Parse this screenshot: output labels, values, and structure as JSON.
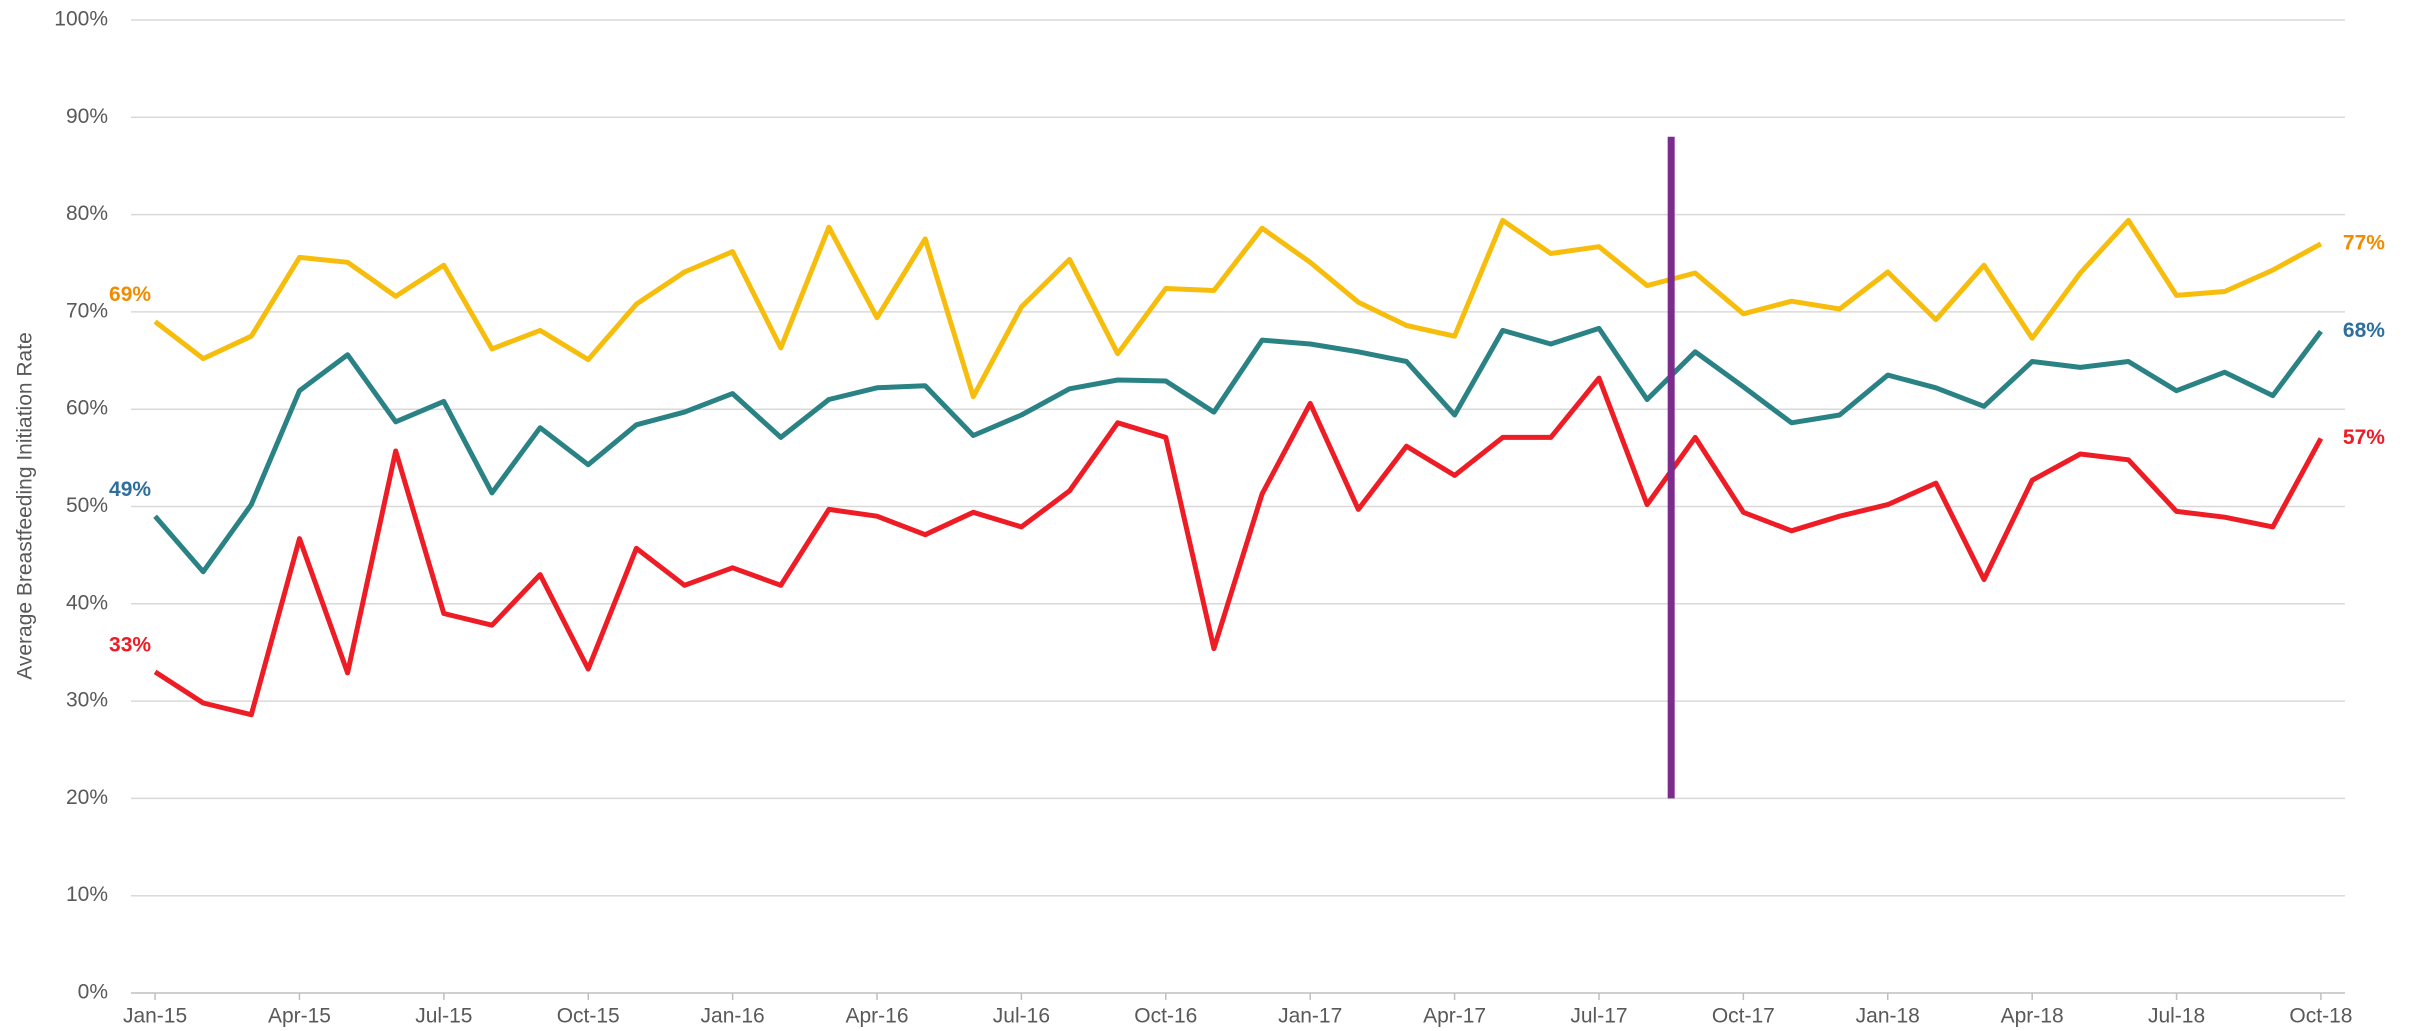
{
  "chart_data": {
    "type": "line",
    "ylabel": "Average Breastfeeding Initiation Rate",
    "categories": [
      "Jan-15",
      null,
      null,
      "Apr-15",
      null,
      null,
      "Jul-15",
      null,
      null,
      "Oct-15",
      null,
      null,
      "Jan-16",
      null,
      null,
      "Apr-16",
      null,
      null,
      "Jul-16",
      null,
      null,
      "Oct-16",
      null,
      null,
      "Jan-17",
      null,
      null,
      "Apr-17",
      null,
      null,
      "Jul-17",
      null,
      null,
      "Oct-17",
      null,
      null,
      "Jan-18",
      null,
      null,
      "Apr-18",
      null,
      null,
      "Jul-18",
      null,
      null,
      "Oct-18"
    ],
    "series": [
      {
        "color": "#f7bd0c",
        "label_color": "#f08c00",
        "values": [
          69,
          65.2,
          67.5,
          75.6,
          75.1,
          71.6,
          74.8,
          66.2,
          68.1,
          65.1,
          70.8,
          74.1,
          76.2,
          66.3,
          78.7,
          69.4,
          77.5,
          61.3,
          70.5,
          75.4,
          65.7,
          72.4,
          72.2,
          78.6,
          75.1,
          71,
          68.6,
          67.5,
          79.4,
          76,
          76.7,
          72.7,
          74,
          69.8,
          71.1,
          70.3,
          74.1,
          69.2,
          74.8,
          67.3,
          74,
          79.4,
          71.7,
          72.1,
          74.3,
          77
        ],
        "value_labels": [
          "69%",
          null,
          null,
          null,
          null,
          null,
          null,
          null,
          null,
          null,
          null,
          null,
          null,
          null,
          null,
          null,
          null,
          null,
          null,
          null,
          null,
          null,
          null,
          null,
          null,
          null,
          null,
          null,
          null,
          null,
          null,
          null,
          null,
          null,
          null,
          null,
          null,
          null,
          null,
          null,
          null,
          null,
          null,
          null,
          null,
          "77%"
        ]
      },
      {
        "color": "#2a8285",
        "label_color": "#2e6f9e",
        "values": [
          49,
          43.3,
          50.2,
          61.9,
          65.6,
          58.7,
          60.8,
          51.4,
          58.1,
          54.3,
          58.4,
          59.7,
          61.6,
          57.1,
          61,
          62.2,
          62.4,
          57.3,
          59.4,
          62.1,
          63,
          62.9,
          59.7,
          67.1,
          66.7,
          65.9,
          64.9,
          59.4,
          68.1,
          66.7,
          68.3,
          61,
          65.9,
          62.3,
          58.6,
          59.4,
          63.5,
          62.2,
          60.3,
          64.9,
          64.3,
          64.9,
          61.9,
          63.8,
          61.4,
          68
        ],
        "value_labels": [
          "49%",
          null,
          null,
          null,
          null,
          null,
          null,
          null,
          null,
          null,
          null,
          null,
          null,
          null,
          null,
          null,
          null,
          null,
          null,
          null,
          null,
          null,
          null,
          null,
          null,
          null,
          null,
          null,
          null,
          null,
          null,
          null,
          null,
          null,
          null,
          null,
          null,
          null,
          null,
          null,
          null,
          null,
          null,
          null,
          null,
          "68%"
        ]
      },
      {
        "color": "#ee1c25",
        "label_color": "#ee1c25",
        "values": [
          33,
          29.8,
          28.6,
          46.7,
          32.9,
          55.7,
          39,
          37.8,
          43,
          33.3,
          45.7,
          41.9,
          43.7,
          41.9,
          49.7,
          49,
          47.1,
          49.4,
          47.9,
          51.6,
          58.6,
          57.1,
          35.4,
          51.3,
          60.6,
          49.7,
          56.2,
          53.2,
          57.1,
          57.1,
          63.2,
          50.2,
          57.1,
          49.4,
          47.5,
          49,
          50.2,
          52.4,
          42.5,
          52.7,
          55.4,
          54.8,
          49.5,
          48.9,
          47.9,
          57
        ],
        "value_labels": [
          "33%",
          null,
          null,
          null,
          null,
          null,
          null,
          null,
          null,
          null,
          null,
          null,
          null,
          null,
          null,
          null,
          null,
          null,
          null,
          null,
          null,
          null,
          null,
          null,
          null,
          null,
          null,
          null,
          null,
          null,
          null,
          null,
          null,
          null,
          null,
          null,
          null,
          null,
          null,
          null,
          null,
          null,
          null,
          null,
          null,
          "57%"
        ]
      }
    ],
    "marker_line": {
      "x": 31.5,
      "ylim": [
        20,
        88
      ],
      "color": "#7b2c8c"
    },
    "ylim": [
      0,
      100
    ],
    "yticks": [
      {
        "value": 0,
        "label": "0%"
      },
      {
        "value": 10,
        "label": "10%"
      },
      {
        "value": 20,
        "label": "20%"
      },
      {
        "value": 30,
        "label": "30%"
      },
      {
        "value": 40,
        "label": "40%"
      },
      {
        "value": 50,
        "label": "50%"
      },
      {
        "value": 60,
        "label": "60%"
      },
      {
        "value": 70,
        "label": "70%"
      },
      {
        "value": 80,
        "label": "80%"
      },
      {
        "value": 90,
        "label": "90%"
      },
      {
        "value": 100,
        "label": "100%"
      }
    ],
    "grid": true
  }
}
